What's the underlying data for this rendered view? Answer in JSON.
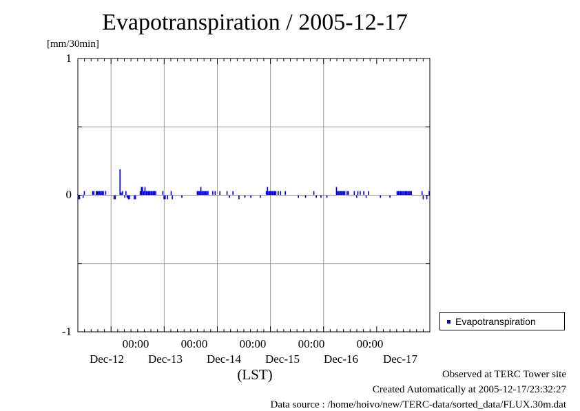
{
  "chart_data": {
    "type": "bar",
    "title": "Evapotranspiration / 2005-12-17",
    "unit": "[mm/30min]",
    "ylim": [
      -1,
      1
    ],
    "yticks": [
      "1",
      "0",
      "-1"
    ],
    "xlabel": "(LST)",
    "x_time_labels": [
      "00:00",
      "00:00",
      "00:00",
      "00:00",
      "00:00"
    ],
    "x_date_labels": [
      "Dec-12",
      "Dec-13",
      "Dec-14",
      "Dec-15",
      "Dec-16",
      "Dec-17"
    ],
    "grid": true,
    "legend_position": "right-bottom",
    "series": [
      {
        "name": "Evapotranspiration",
        "color": "#0000cc",
        "start": "2005-12-11 00:00",
        "interval_minutes": 30,
        "values": [
          -0.03,
          -0.03,
          0,
          0,
          -0.02,
          0.03,
          0,
          0,
          0,
          0,
          0,
          0,
          0.03,
          0.03,
          0,
          0.03,
          0.03,
          0.03,
          0.03,
          0.03,
          0.03,
          0.03,
          0,
          0.03,
          0,
          0,
          0,
          0,
          0,
          0,
          -0.03,
          -0.03,
          0,
          0,
          0,
          0.19,
          0.02,
          0.03,
          0,
          -0.02,
          0.03,
          -0.02,
          -0.03,
          -0.03,
          0,
          0,
          0,
          -0.03,
          -0.03,
          0,
          0,
          0,
          0.03,
          0.06,
          0.06,
          0.03,
          0.06,
          0.03,
          0.03,
          0.03,
          0.03,
          0.03,
          0.03,
          0.03,
          0.03,
          0.03,
          0,
          0,
          0,
          0,
          0,
          0.03,
          -0.03,
          -0.03,
          0,
          -0.03,
          0,
          0,
          0.03,
          -0.03,
          0,
          0,
          0,
          0,
          0,
          0,
          0,
          -0.02,
          0,
          0,
          0,
          0,
          0,
          0,
          0,
          0,
          0,
          0,
          0,
          0,
          0.03,
          0.03,
          0.03,
          0.06,
          0.03,
          0.03,
          0.03,
          0.03,
          0.03,
          0.03,
          0,
          0,
          0,
          0.03,
          0,
          0.03,
          0,
          0,
          0,
          0.03,
          0,
          0,
          0,
          0,
          0,
          0.03,
          0,
          -0.02,
          0,
          0,
          0.03,
          0,
          0,
          0,
          0,
          -0.03,
          0,
          0,
          0,
          0,
          -0.02,
          0,
          0,
          0,
          0,
          -0.02,
          0,
          0,
          0,
          0,
          0,
          0,
          0,
          -0.02,
          0,
          0,
          0,
          0,
          0.03,
          0.06,
          0.03,
          0.03,
          0.03,
          0.03,
          0.03,
          0.03,
          0.03,
          0,
          0.03,
          0,
          0.03,
          0,
          0,
          0,
          0.03,
          0,
          0,
          0,
          0,
          0,
          0,
          0,
          0,
          0,
          0,
          -0.02,
          0,
          0,
          0,
          0,
          0,
          -0.02,
          0,
          0,
          0,
          0,
          0,
          0,
          0.03,
          0,
          -0.02,
          0,
          0,
          0,
          -0.02,
          0,
          0,
          0,
          0,
          -0.02,
          0,
          0,
          0,
          0,
          0,
          0,
          0,
          0.06,
          0.03,
          0.03,
          0.03,
          0.03,
          0.03,
          0.03,
          0.03,
          0,
          0.03,
          0.03,
          0,
          0,
          0,
          0,
          0.03,
          0,
          -0.02,
          0.03,
          0,
          0.03,
          0,
          0,
          0.03,
          0,
          -0.02,
          0,
          0.03,
          0,
          0,
          0,
          0,
          0,
          0,
          0,
          0,
          0,
          -0.02,
          0,
          0,
          0,
          0,
          0,
          0,
          0,
          -0.02,
          0,
          0,
          0,
          0,
          0,
          0.03,
          0.03,
          0.03,
          0.03,
          0.03,
          0.03,
          0.03,
          0.03,
          0.03,
          0.03,
          0.03,
          0.03,
          0.03,
          0,
          0,
          0,
          0,
          0,
          0,
          0,
          0,
          0.03,
          -0.03,
          0,
          0,
          -0.03,
          0,
          0.03
        ]
      }
    ]
  },
  "footer": {
    "site": "Observed at TERC Tower site",
    "created": "Created Automatically at 2005-12-17/23:32:27",
    "source": "Data source : /home/hoivo/new/TERC-data/sorted_data/FLUX.30m.dat"
  }
}
